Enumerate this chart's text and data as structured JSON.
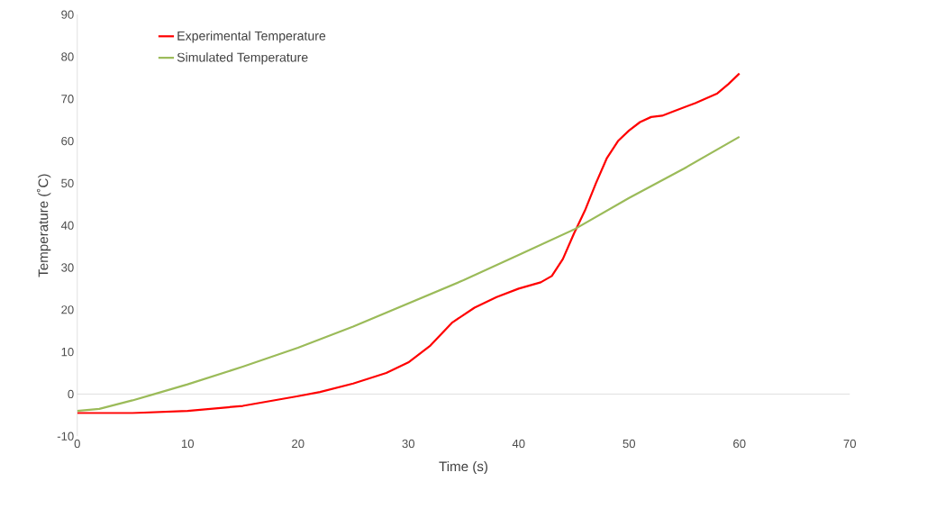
{
  "chart_data": {
    "type": "line",
    "xlabel": "Time (s)",
    "ylabel": "Temperature (˚C)",
    "xlim": [
      0,
      70
    ],
    "xticks": [
      0,
      10,
      20,
      30,
      40,
      50,
      60,
      70
    ],
    "ylim": [
      -10,
      90
    ],
    "yticks": [
      -10,
      0,
      10,
      20,
      30,
      40,
      50,
      60,
      70,
      80,
      90
    ],
    "legend": "top left",
    "marker": "none",
    "line_style": "solid",
    "series": [
      {
        "name": "Experimental Temperature",
        "color": "#ff0000",
        "x": [
          0,
          5,
          10,
          15,
          20,
          22,
          25,
          28,
          30,
          32,
          34,
          36,
          38,
          40,
          42,
          43,
          44,
          45,
          46,
          47,
          48,
          49,
          50,
          51,
          52,
          53,
          54,
          56,
          58,
          59,
          60
        ],
        "values": [
          -4.5,
          -4.5,
          -4,
          -2.8,
          -0.5,
          0.5,
          2.5,
          5,
          7.5,
          11.5,
          17,
          20.5,
          23,
          25,
          26.5,
          28,
          32,
          38,
          43.5,
          50,
          56,
          60,
          62.5,
          64.5,
          65.7,
          66,
          67,
          69,
          71.3,
          73.5,
          76
        ]
      },
      {
        "name": "Simulated Temperature",
        "color": "#9bbb59",
        "x": [
          0,
          2,
          5,
          7,
          10,
          15,
          20,
          25,
          30,
          35,
          40,
          45,
          50,
          55,
          60
        ],
        "values": [
          -4,
          -3.5,
          -1.5,
          0,
          2.3,
          6.5,
          11,
          16,
          21.5,
          27,
          33,
          39,
          46.5,
          53.5,
          61
        ]
      }
    ]
  }
}
